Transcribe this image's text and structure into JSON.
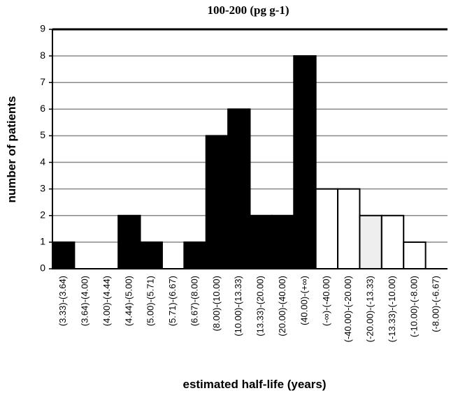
{
  "chart_data": {
    "type": "bar",
    "title": "100-200 (pg g-1)",
    "xlabel": "estimated half-life (years)",
    "ylabel": "number of patients",
    "categories": [
      "(3.33)-(3.64)",
      "(3.64)-(4.00)",
      "(4.00)-(4.44)",
      "(4.44)-(5.00)",
      "(5.00)-(5.71)",
      "(5.71)-(6.67)",
      "(6.67)-(8.00)",
      "(8.00)-(10.00)",
      "(10.00)-(13.33)",
      "(13.33)-(20.00)",
      "(20.00)-(40.00)",
      "(40.00)-(+∞)",
      "(-∞)-(-40.00)",
      "(-40.00)-(-20.00)",
      "(-20.00)-(-13.33)",
      "(-13.33)-(-10.00)",
      "(-10.00)-(-8.00)",
      "(-8.00)-(-6.67)"
    ],
    "values": [
      1,
      0,
      0,
      2,
      1,
      0,
      1,
      5,
      6,
      2,
      2,
      8,
      3,
      3,
      2,
      2,
      1,
      0
    ],
    "colors": [
      "#000000",
      "#000000",
      "#000000",
      "#000000",
      "#000000",
      "#000000",
      "#000000",
      "#000000",
      "#000000",
      "#000000",
      "#000000",
      "#000000",
      "#ffffff",
      "#ffffff",
      "#eeeeee",
      "#ffffff",
      "#ffffff",
      "#ffffff"
    ],
    "ylim": [
      0,
      9
    ],
    "yticks": [
      0,
      1,
      2,
      3,
      4,
      5,
      6,
      7,
      8,
      9
    ],
    "grid": true
  }
}
